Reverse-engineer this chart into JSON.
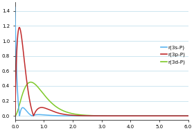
{
  "title": "",
  "xlabel": "",
  "ylabel": "",
  "xlim": [
    0,
    6.0
  ],
  "ylim": [
    -0.05,
    1.52
  ],
  "yticks": [
    0.0,
    0.2,
    0.4,
    0.6,
    0.8,
    1.0,
    1.2,
    1.4
  ],
  "xticks": [
    0.0,
    1.0,
    2.0,
    3.0,
    4.0,
    5.0,
    6.0
  ],
  "xtick_labels": [
    "0.0",
    "1.0",
    "2.0",
    "3.0",
    "4.0",
    "5.0",
    "6.0"
  ],
  "legend": [
    {
      "label": "r(3s-P)",
      "color": "#5ab4f0"
    },
    {
      "label": "r(3p-P)",
      "color": "#c0292b"
    },
    {
      "label": "r(3d-P)",
      "color": "#7dc828"
    }
  ],
  "grid_color": "#b8dcea",
  "background_color": "#ffffff",
  "line_width": 1.1,
  "scale_3s": 18.0,
  "scale_3p": 14.0,
  "scale_3d": 11.0,
  "peak_3s": 1.45,
  "peak_3p": 1.18,
  "peak_3d_second": 0.45
}
